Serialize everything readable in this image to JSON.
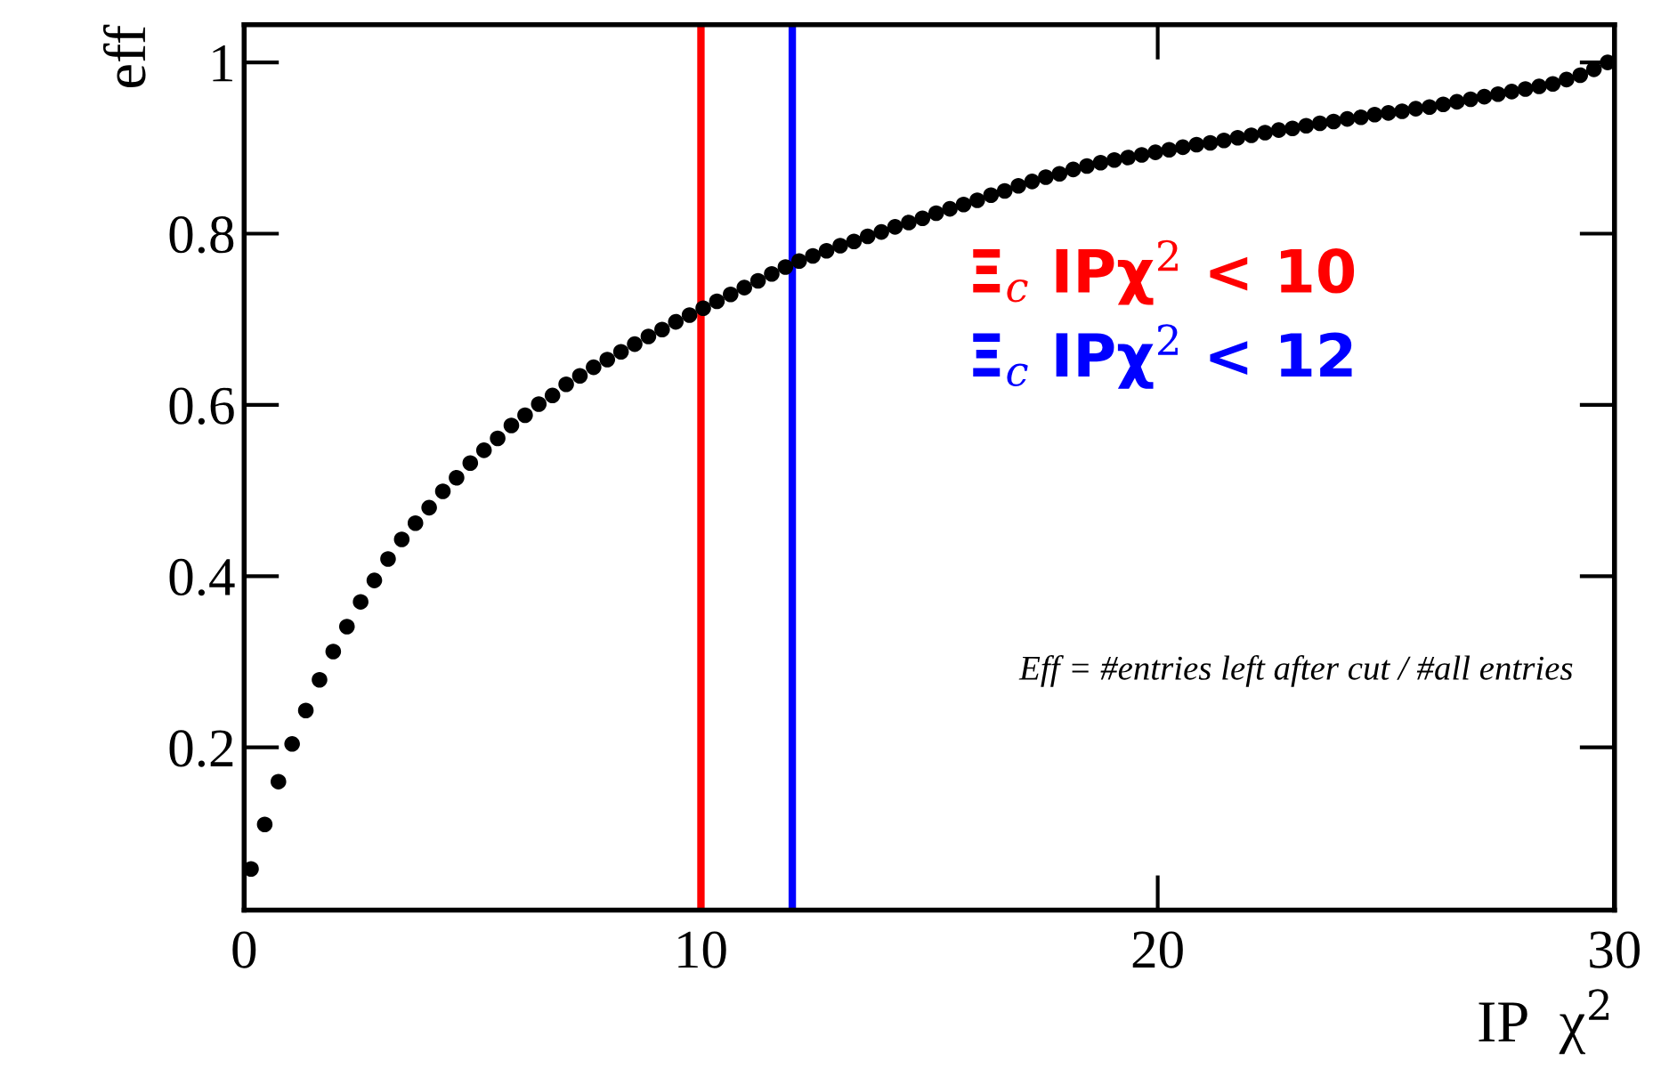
{
  "chart_data": {
    "type": "scatter",
    "xlabel": "IP  χ$^{2}$",
    "ylabel": "eff",
    "x": [
      0.15,
      0.45,
      0.75,
      1.05,
      1.35,
      1.65,
      1.95,
      2.25,
      2.55,
      2.85,
      3.15,
      3.45,
      3.75,
      4.05,
      4.35,
      4.65,
      4.95,
      5.25,
      5.55,
      5.85,
      6.15,
      6.45,
      6.75,
      7.05,
      7.35,
      7.65,
      7.95,
      8.25,
      8.55,
      8.85,
      9.15,
      9.45,
      9.75,
      10.05,
      10.35,
      10.65,
      10.95,
      11.25,
      11.55,
      11.85,
      12.15,
      12.45,
      12.75,
      13.05,
      13.35,
      13.65,
      13.95,
      14.25,
      14.55,
      14.85,
      15.15,
      15.45,
      15.75,
      16.05,
      16.35,
      16.65,
      16.95,
      17.25,
      17.55,
      17.85,
      18.15,
      18.45,
      18.75,
      19.05,
      19.35,
      19.65,
      19.95,
      20.25,
      20.55,
      20.85,
      21.15,
      21.45,
      21.75,
      22.05,
      22.35,
      22.65,
      22.95,
      23.25,
      23.55,
      23.85,
      24.15,
      24.45,
      24.75,
      25.05,
      25.35,
      25.65,
      25.95,
      26.25,
      26.55,
      26.85,
      27.15,
      27.45,
      27.75,
      28.05,
      28.35,
      28.65,
      28.95,
      29.25,
      29.55,
      29.85
    ],
    "series": [
      {
        "color": "#000000",
        "values": [
          0.058,
          0.11,
          0.16,
          0.204,
          0.243,
          0.279,
          0.312,
          0.341,
          0.37,
          0.395,
          0.42,
          0.443,
          0.462,
          0.48,
          0.499,
          0.515,
          0.532,
          0.547,
          0.561,
          0.576,
          0.588,
          0.601,
          0.611,
          0.624,
          0.634,
          0.644,
          0.653,
          0.662,
          0.671,
          0.68,
          0.688,
          0.697,
          0.705,
          0.713,
          0.721,
          0.729,
          0.737,
          0.745,
          0.753,
          0.761,
          0.768,
          0.774,
          0.78,
          0.786,
          0.791,
          0.797,
          0.802,
          0.808,
          0.813,
          0.818,
          0.824,
          0.829,
          0.834,
          0.839,
          0.845,
          0.85,
          0.856,
          0.861,
          0.866,
          0.87,
          0.875,
          0.879,
          0.883,
          0.886,
          0.889,
          0.892,
          0.895,
          0.898,
          0.901,
          0.904,
          0.906,
          0.909,
          0.912,
          0.915,
          0.918,
          0.921,
          0.923,
          0.926,
          0.929,
          0.931,
          0.934,
          0.936,
          0.939,
          0.941,
          0.943,
          0.946,
          0.948,
          0.951,
          0.954,
          0.957,
          0.96,
          0.963,
          0.966,
          0.969,
          0.972,
          0.975,
          0.98,
          0.985,
          0.992,
          1.0
        ]
      }
    ],
    "marker": "circle",
    "xlim": [
      0,
      30
    ],
    "ylim": [
      0.01,
      1.044
    ],
    "xticks": [
      0,
      10,
      20,
      30
    ],
    "yticks": [
      0.2,
      0.4,
      0.6,
      0.8,
      1
    ],
    "ref_lines": [
      {
        "axis": "x",
        "value": 10,
        "label": "Ξ$_{c}$ IPχ$^{2}$ < 10",
        "color": "#ff0000"
      },
      {
        "axis": "x",
        "value": 12,
        "label": "Ξ$_{c}$ IPχ$^{2}$ < 12",
        "color": "#0000ff"
      }
    ],
    "annotations": [
      "Eff = #entries left after cut / #all entries"
    ],
    "grid": false,
    "legend": false
  }
}
